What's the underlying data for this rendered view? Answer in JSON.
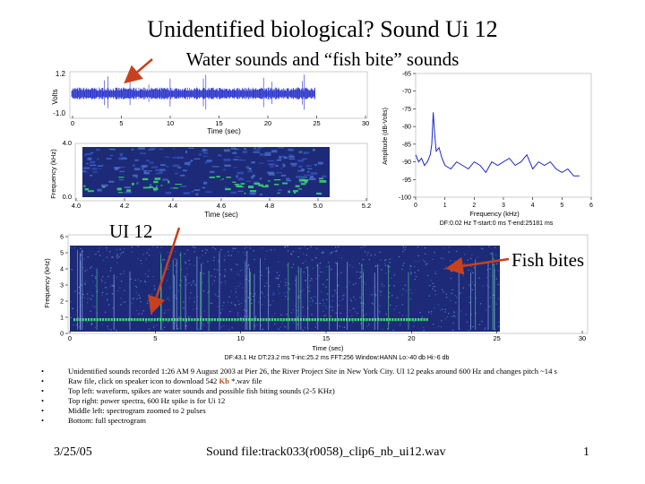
{
  "slide": {
    "title": "Unidentified biological? Sound Ui 12",
    "subtitle": "Water sounds and “fish bite” sounds"
  },
  "waveform": {
    "ylabel": "Volts",
    "xlabel": "Time (sec)",
    "yticks": [
      "1.2",
      "-1.0"
    ],
    "xticks": [
      "0",
      "5",
      "10",
      "15",
      "20",
      "25",
      "30"
    ]
  },
  "zoom_spectrogram": {
    "ylabel": "Frequency (kHz)",
    "xlabel": "Time (sec)",
    "yticks": [
      "4.0",
      "0.0"
    ],
    "xticks": [
      "4.0",
      "4.2",
      "4.4",
      "4.6",
      "4.8",
      "5.0",
      "5.2"
    ]
  },
  "power_spectrum": {
    "ylabel": "Amplitude (dB-Volts)",
    "xlabel": "Frequency (kHz)",
    "footer": "DF:0.02 Hz   T-start:0 ms   T-end:25181 ms"
  },
  "full_spectrogram": {
    "ylabel": "Frequency (kHz)",
    "xlabel": "Time (sec)",
    "yticks": [
      "6",
      "5",
      "4",
      "3",
      "2",
      "1",
      "0"
    ],
    "xticks": [
      "0",
      "5",
      "10",
      "15",
      "20",
      "25",
      "30"
    ],
    "footer": "DF:43.1 Hz   DT:23.2 ms   T-inc:25.2 ms   FFT:256   Window:HANN   Lo:-40 db   Hi:-6 db"
  },
  "callouts": {
    "ui12": "UI 12",
    "fish_bites": "Fish bites"
  },
  "colors": {
    "arrow": "#c8411e",
    "signal": "#1e28c8",
    "spectrogram_bg": "#1c2a78",
    "spectrogram_hot": "#3cdc6e"
  },
  "chart_data": [
    {
      "type": "line",
      "title": "",
      "xlabel": "Frequency (kHz)",
      "ylabel": "Amplitude (dB-Volts)",
      "xlim": [
        0,
        6
      ],
      "ylim": [
        -100,
        -65
      ],
      "xticks": [
        0,
        1,
        2,
        3,
        4,
        5,
        6
      ],
      "yticks": [
        -65,
        -70,
        -75,
        -80,
        -85,
        -90,
        -95,
        -100
      ],
      "series": [
        {
          "x": [
            0.0,
            0.1,
            0.2,
            0.3,
            0.4,
            0.5,
            0.55,
            0.6,
            0.65,
            0.7,
            0.8,
            0.9,
            1.0,
            1.2,
            1.4,
            1.6,
            1.8,
            2.0,
            2.2,
            2.4,
            2.6,
            2.8,
            3.0,
            3.2,
            3.4,
            3.6,
            3.8,
            4.0,
            4.2,
            4.4,
            4.6,
            4.8,
            5.0,
            5.2,
            5.4,
            5.6
          ],
          "y": [
            -88,
            -90,
            -89,
            -91,
            -90,
            -88,
            -85,
            -76,
            -82,
            -87,
            -86,
            -89,
            -91,
            -92,
            -90,
            -91,
            -92,
            -90,
            -91,
            -93,
            -90,
            -91,
            -90,
            -89,
            -91,
            -90,
            -88,
            -92,
            -90,
            -91,
            -90,
            -92,
            -93,
            -92,
            -94,
            -94
          ]
        }
      ]
    }
  ],
  "bullets": [
    {
      "text": "Unidentified sounds recorded 1:26 AM 9 August 2003 at Pier 26, the River Project Site in New York City.  UI 12 peaks around 600 Hz and changes pitch ~14 s"
    },
    {
      "text": "Raw file, click on speaker icon to download 542 ",
      "kb": "Kb",
      "text_after": " *.wav file"
    },
    {
      "text": "Top left: waveform, spikes are water sounds and possible fish biting sounds (2-5 KHz)"
    },
    {
      "text": "Top right: power spectra, 600 Hz spike is for Ui 12"
    },
    {
      "text": "Middle left: spectrogram zoomed to 2 pulses"
    },
    {
      "text": "Bottom: full spectrogram"
    }
  ],
  "footer": {
    "date": "3/25/05",
    "sound_file": "Sound file:track033(r0058)_clip6_nb_ui12.wav",
    "page": "1"
  }
}
